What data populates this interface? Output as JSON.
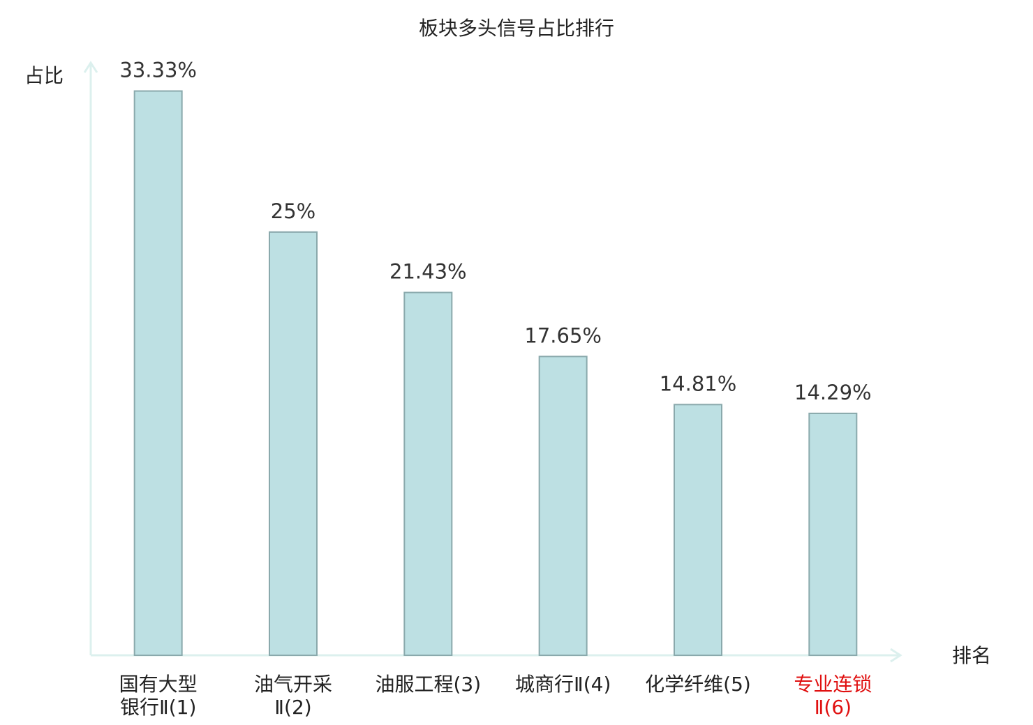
{
  "chart_data": {
    "type": "bar",
    "title": "板块多头信号占比排行",
    "y_label": "占比",
    "x_label": "排名",
    "categories": [
      "国有大型\n银行Ⅱ(1)",
      "油气开采\nⅡ(2)",
      "油服工程(3)",
      "城商行Ⅱ(4)",
      "化学纤维(5)",
      "专业连锁\nⅡ(6)"
    ],
    "category_label_colors": [
      "#222222",
      "#222222",
      "#222222",
      "#222222",
      "#222222",
      "#e01010"
    ],
    "values": [
      33.33,
      25,
      21.43,
      17.65,
      14.81,
      14.29
    ],
    "value_labels": [
      "33.33%",
      "25%",
      "21.43%",
      "17.65%",
      "14.81%",
      "14.29%"
    ],
    "color": "#bde0e3",
    "edge_color": "#8aa9ac",
    "axis_color": "#dcf0ee",
    "ylim": [
      0,
      35
    ]
  }
}
